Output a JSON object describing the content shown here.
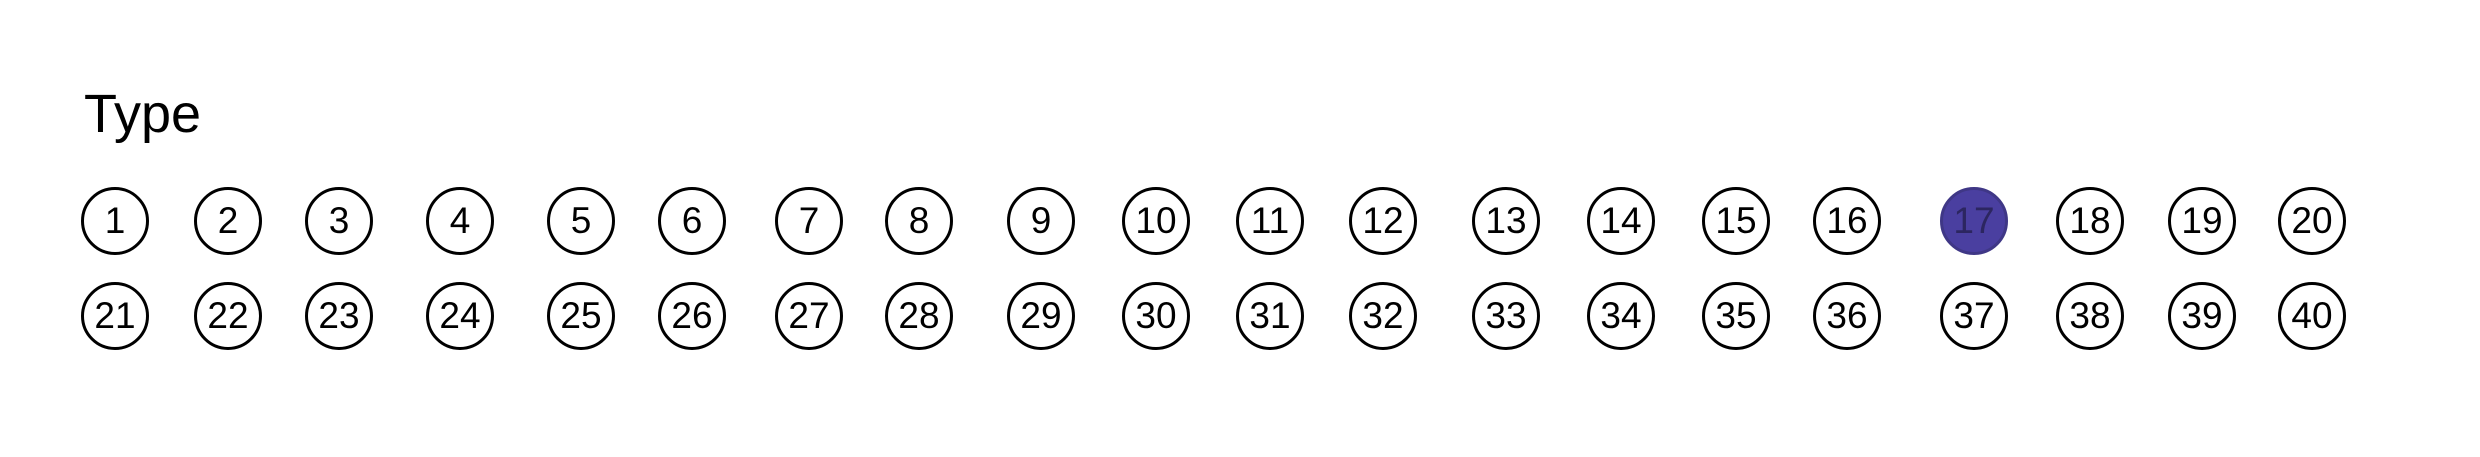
{
  "form": {
    "section_label": "Type",
    "fill_color": "#4a3fa0",
    "selected_option": "17",
    "rows": [
      {
        "options": [
          {
            "label": "1",
            "filled": false
          },
          {
            "label": "2",
            "filled": false
          },
          {
            "label": "3",
            "filled": false
          },
          {
            "label": "4",
            "filled": false
          },
          {
            "label": "5",
            "filled": false
          },
          {
            "label": "6",
            "filled": false
          },
          {
            "label": "7",
            "filled": false
          },
          {
            "label": "8",
            "filled": false
          },
          {
            "label": "9",
            "filled": false
          },
          {
            "label": "10",
            "filled": false
          },
          {
            "label": "11",
            "filled": false
          },
          {
            "label": "12",
            "filled": false
          },
          {
            "label": "13",
            "filled": false
          },
          {
            "label": "14",
            "filled": false
          },
          {
            "label": "15",
            "filled": false
          },
          {
            "label": "16",
            "filled": false
          },
          {
            "label": "17",
            "filled": true
          },
          {
            "label": "18",
            "filled": false
          },
          {
            "label": "19",
            "filled": false
          },
          {
            "label": "20",
            "filled": false
          }
        ]
      },
      {
        "options": [
          {
            "label": "21",
            "filled": false
          },
          {
            "label": "22",
            "filled": false
          },
          {
            "label": "23",
            "filled": false
          },
          {
            "label": "24",
            "filled": false
          },
          {
            "label": "25",
            "filled": false
          },
          {
            "label": "26",
            "filled": false
          },
          {
            "label": "27",
            "filled": false
          },
          {
            "label": "28",
            "filled": false
          },
          {
            "label": "29",
            "filled": false
          },
          {
            "label": "30",
            "filled": false
          },
          {
            "label": "31",
            "filled": false
          },
          {
            "label": "32",
            "filled": false
          },
          {
            "label": "33",
            "filled": false
          },
          {
            "label": "34",
            "filled": false
          },
          {
            "label": "35",
            "filled": false
          },
          {
            "label": "36",
            "filled": false
          },
          {
            "label": "37",
            "filled": false
          },
          {
            "label": "38",
            "filled": false
          },
          {
            "label": "39",
            "filled": false
          },
          {
            "label": "40",
            "filled": false
          }
        ]
      }
    ]
  }
}
